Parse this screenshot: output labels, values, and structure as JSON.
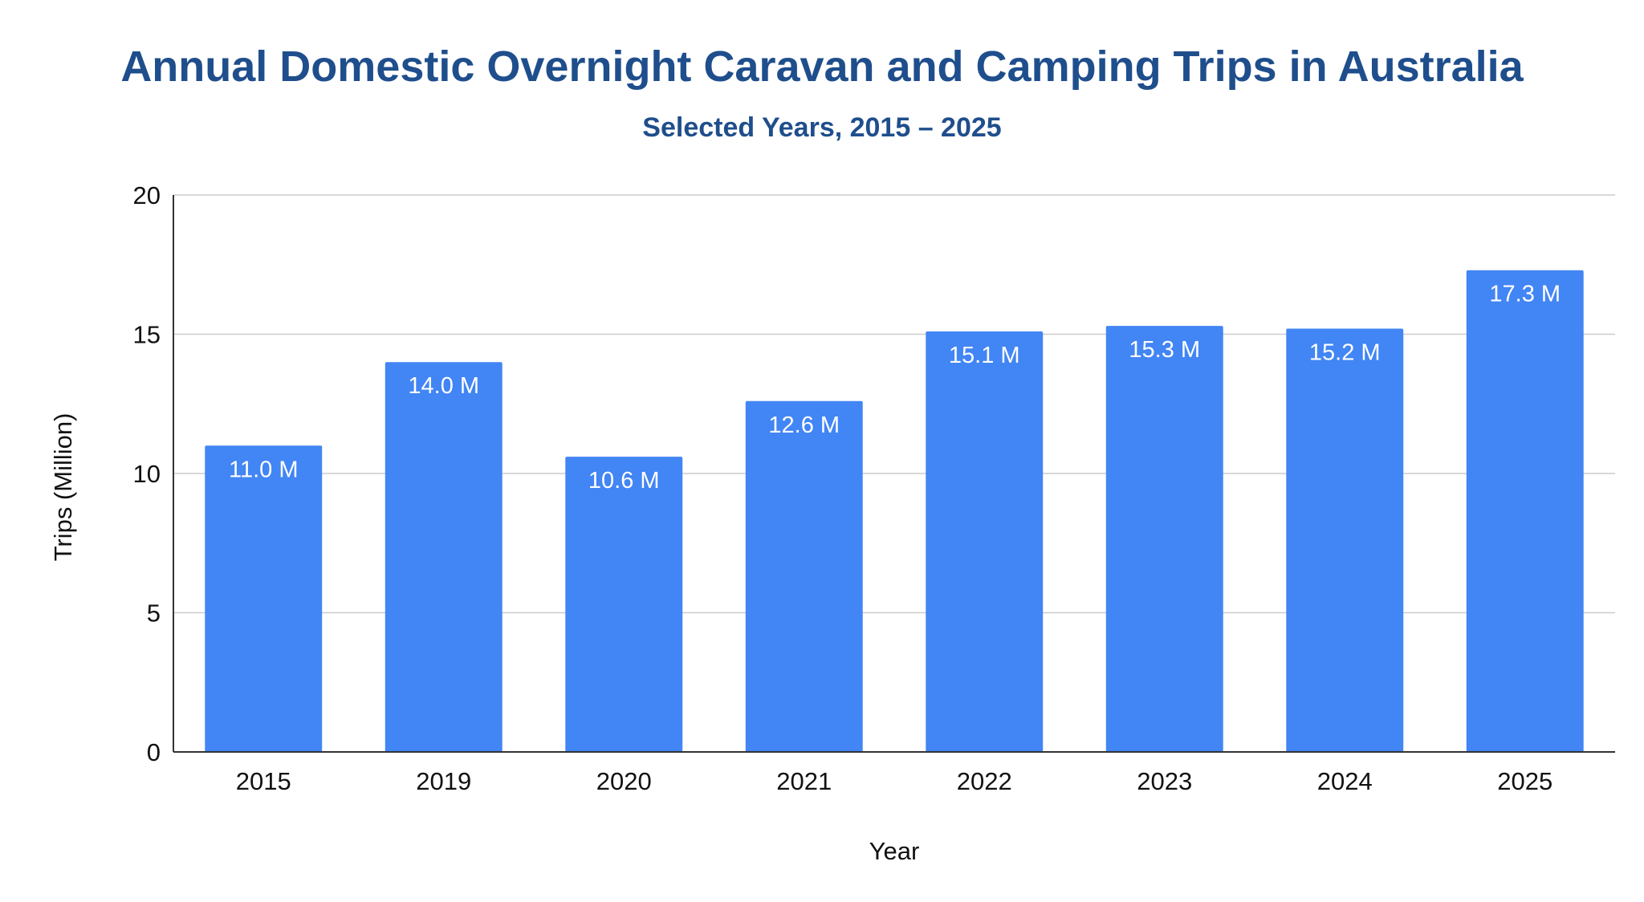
{
  "chart_data": {
    "type": "bar",
    "title": "Annual Domestic Overnight Caravan and Camping Trips in Australia",
    "subtitle": "Selected Years, 2015 – 2025",
    "xlabel": "Year",
    "ylabel": "Trips (Million)",
    "categories": [
      "2015",
      "2019",
      "2020",
      "2021",
      "2022",
      "2023",
      "2024",
      "2025"
    ],
    "values": [
      11.0,
      14.0,
      10.6,
      12.6,
      15.1,
      15.3,
      15.2,
      17.3
    ],
    "data_labels": [
      "11.0 M",
      "14.0 M",
      "10.6 M",
      "12.6 M",
      "15.1 M",
      "15.3 M",
      "15.2 M",
      "17.3 M"
    ],
    "ylim": [
      0,
      20
    ],
    "yticks": [
      0,
      5,
      10,
      15,
      20
    ],
    "grid": true,
    "legend": "none",
    "bar_color": "#4285f4",
    "title_color": "#1f4e8c"
  }
}
